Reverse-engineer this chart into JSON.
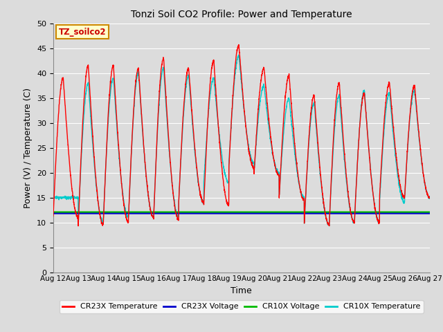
{
  "title": "Tonzi Soil CO2 Profile: Power and Temperature",
  "xlabel": "Time",
  "ylabel": "Power (V) / Temperature (C)",
  "ylim": [
    0,
    50
  ],
  "yticks": [
    0,
    5,
    10,
    15,
    20,
    25,
    30,
    35,
    40,
    45,
    50
  ],
  "x_tick_days": [
    12,
    13,
    14,
    15,
    16,
    17,
    18,
    19,
    20,
    21,
    22,
    23,
    24,
    25,
    26,
    27
  ],
  "background_color": "#dcdcdc",
  "plot_bg_color": "#dcdcdc",
  "grid_color": "#ffffff",
  "cr23x_temp_color": "#ff0000",
  "cr23x_volt_color": "#0000cc",
  "cr10x_volt_color": "#00bb00",
  "cr10x_temp_color": "#00cccc",
  "legend_labels": [
    "CR23X Temperature",
    "CR23X Voltage",
    "CR10X Voltage",
    "CR10X Temperature"
  ],
  "annotation_text": "TZ_soilco2",
  "annotation_bg": "#ffffcc",
  "annotation_border": "#cc8800",
  "cr23x_peaks": [
    39,
    41.5,
    41.5,
    41,
    43,
    41,
    42.5,
    45.5,
    41,
    39.5,
    35.5,
    38,
    36,
    38,
    37.5
  ],
  "cr10x_peaks": [
    15,
    38,
    39,
    40,
    41,
    39.5,
    39,
    43.5,
    37.5,
    35,
    34,
    35.5,
    36.5,
    36,
    36.5
  ],
  "cr23x_mins": [
    11,
    9.5,
    10,
    11,
    10.5,
    14,
    13.5,
    21,
    19.5,
    14.5,
    9.5,
    10,
    10,
    15,
    15
  ],
  "cr10x_mins": [
    15,
    10,
    11,
    11,
    11,
    14,
    18,
    22,
    20,
    15,
    9.5,
    10,
    10,
    14,
    15
  ],
  "cr23x_volt_level": 11.8,
  "cr10x_volt_level": 12.0
}
